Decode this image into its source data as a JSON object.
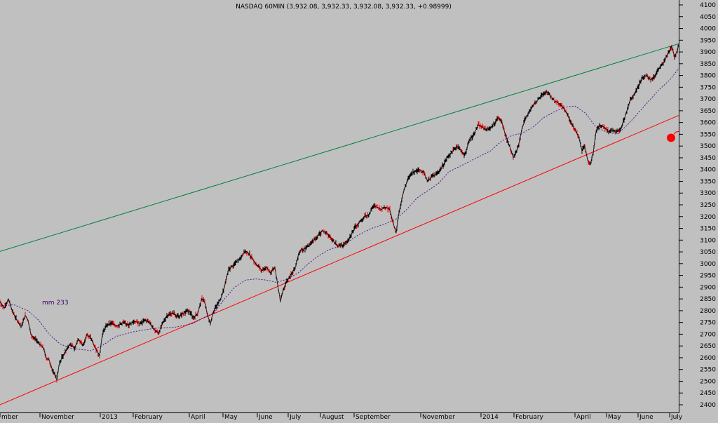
{
  "chart_data": {
    "type": "line",
    "title": "NASDAQ 60MIN (3,932.08, 3,932.33, 3,932.08, 3,932.33, +0.98999)",
    "xlabel": "",
    "ylabel": "",
    "ylim": [
      2400,
      4100
    ],
    "grid": false,
    "legend": "none",
    "y_ticks": [
      2400,
      2450,
      2500,
      2550,
      2600,
      2650,
      2700,
      2750,
      2800,
      2850,
      2900,
      2950,
      3000,
      3050,
      3100,
      3150,
      3200,
      3250,
      3300,
      3350,
      3400,
      3450,
      3500,
      3550,
      3600,
      3650,
      3700,
      3750,
      3800,
      3850,
      3900,
      3950,
      4000,
      4050,
      4100
    ],
    "x_month_labels": [
      {
        "t": 0,
        "label": "mber"
      },
      {
        "t": 57,
        "label": "November"
      },
      {
        "t": 143,
        "label": "2013"
      },
      {
        "t": 190,
        "label": "February"
      },
      {
        "t": 270,
        "label": "April"
      },
      {
        "t": 318,
        "label": "May"
      },
      {
        "t": 367,
        "label": "June"
      },
      {
        "t": 411,
        "label": "July"
      },
      {
        "t": 457,
        "label": "August"
      },
      {
        "t": 505,
        "label": "September"
      },
      {
        "t": 600,
        "label": "November"
      },
      {
        "t": 686,
        "label": "2014"
      },
      {
        "t": 733,
        "label": "February"
      },
      {
        "t": 820,
        "label": "April"
      },
      {
        "t": 865,
        "label": "May"
      },
      {
        "t": 910,
        "label": "June"
      },
      {
        "t": 955,
        "label": "July"
      }
    ],
    "x_range": [
      0,
      968
    ],
    "price_path": [
      [
        0,
        2840
      ],
      [
        6,
        2810
      ],
      [
        12,
        2850
      ],
      [
        18,
        2795
      ],
      [
        24,
        2760
      ],
      [
        30,
        2730
      ],
      [
        36,
        2780
      ],
      [
        40,
        2760
      ],
      [
        44,
        2700
      ],
      [
        50,
        2680
      ],
      [
        56,
        2660
      ],
      [
        62,
        2640
      ],
      [
        66,
        2600
      ],
      [
        70,
        2590
      ],
      [
        74,
        2555
      ],
      [
        78,
        2530
      ],
      [
        81,
        2505
      ],
      [
        84,
        2565
      ],
      [
        88,
        2600
      ],
      [
        94,
        2630
      ],
      [
        100,
        2660
      ],
      [
        106,
        2640
      ],
      [
        112,
        2680
      ],
      [
        118,
        2650
      ],
      [
        124,
        2700
      ],
      [
        130,
        2680
      ],
      [
        136,
        2640
      ],
      [
        142,
        2610
      ],
      [
        146,
        2700
      ],
      [
        152,
        2740
      ],
      [
        160,
        2745
      ],
      [
        168,
        2735
      ],
      [
        176,
        2750
      ],
      [
        184,
        2740
      ],
      [
        192,
        2755
      ],
      [
        200,
        2745
      ],
      [
        208,
        2760
      ],
      [
        214,
        2745
      ],
      [
        220,
        2720
      ],
      [
        226,
        2705
      ],
      [
        232,
        2745
      ],
      [
        238,
        2780
      ],
      [
        246,
        2790
      ],
      [
        254,
        2775
      ],
      [
        262,
        2790
      ],
      [
        270,
        2800
      ],
      [
        276,
        2770
      ],
      [
        282,
        2790
      ],
      [
        288,
        2850
      ],
      [
        292,
        2835
      ],
      [
        296,
        2780
      ],
      [
        300,
        2745
      ],
      [
        304,
        2795
      ],
      [
        310,
        2825
      ],
      [
        316,
        2860
      ],
      [
        320,
        2900
      ],
      [
        326,
        2975
      ],
      [
        332,
        2990
      ],
      [
        338,
        3010
      ],
      [
        344,
        3030
      ],
      [
        350,
        3055
      ],
      [
        356,
        3040
      ],
      [
        362,
        3010
      ],
      [
        368,
        2990
      ],
      [
        374,
        2970
      ],
      [
        380,
        2985
      ],
      [
        386,
        2960
      ],
      [
        392,
        2985
      ],
      [
        396,
        2910
      ],
      [
        400,
        2840
      ],
      [
        404,
        2890
      ],
      [
        410,
        2930
      ],
      [
        416,
        2960
      ],
      [
        422,
        2990
      ],
      [
        426,
        3045
      ],
      [
        430,
        3060
      ],
      [
        436,
        3065
      ],
      [
        442,
        3080
      ],
      [
        448,
        3100
      ],
      [
        454,
        3120
      ],
      [
        460,
        3140
      ],
      [
        466,
        3130
      ],
      [
        472,
        3110
      ],
      [
        478,
        3085
      ],
      [
        484,
        3075
      ],
      [
        490,
        3080
      ],
      [
        496,
        3100
      ],
      [
        502,
        3130
      ],
      [
        508,
        3160
      ],
      [
        514,
        3180
      ],
      [
        520,
        3200
      ],
      [
        526,
        3210
      ],
      [
        532,
        3245
      ],
      [
        538,
        3240
      ],
      [
        544,
        3230
      ],
      [
        550,
        3240
      ],
      [
        556,
        3230
      ],
      [
        560,
        3180
      ],
      [
        565,
        3130
      ],
      [
        568,
        3200
      ],
      [
        572,
        3260
      ],
      [
        576,
        3310
      ],
      [
        580,
        3345
      ],
      [
        586,
        3380
      ],
      [
        592,
        3395
      ],
      [
        598,
        3400
      ],
      [
        604,
        3390
      ],
      [
        610,
        3350
      ],
      [
        616,
        3370
      ],
      [
        622,
        3380
      ],
      [
        628,
        3400
      ],
      [
        634,
        3430
      ],
      [
        640,
        3460
      ],
      [
        646,
        3480
      ],
      [
        652,
        3500
      ],
      [
        658,
        3480
      ],
      [
        662,
        3460
      ],
      [
        666,
        3490
      ],
      [
        670,
        3530
      ],
      [
        676,
        3550
      ],
      [
        682,
        3590
      ],
      [
        688,
        3580
      ],
      [
        694,
        3570
      ],
      [
        700,
        3580
      ],
      [
        706,
        3600
      ],
      [
        710,
        3620
      ],
      [
        716,
        3600
      ],
      [
        720,
        3555
      ],
      [
        724,
        3520
      ],
      [
        728,
        3490
      ],
      [
        732,
        3450
      ],
      [
        736,
        3470
      ],
      [
        740,
        3510
      ],
      [
        744,
        3570
      ],
      [
        750,
        3620
      ],
      [
        756,
        3650
      ],
      [
        762,
        3680
      ],
      [
        768,
        3700
      ],
      [
        774,
        3720
      ],
      [
        780,
        3730
      ],
      [
        786,
        3710
      ],
      [
        792,
        3690
      ],
      [
        798,
        3680
      ],
      [
        804,
        3660
      ],
      [
        810,
        3630
      ],
      [
        814,
        3600
      ],
      [
        818,
        3580
      ],
      [
        822,
        3560
      ],
      [
        826,
        3530
      ],
      [
        830,
        3480
      ],
      [
        834,
        3500
      ],
      [
        838,
        3440
      ],
      [
        842,
        3425
      ],
      [
        846,
        3470
      ],
      [
        850,
        3560
      ],
      [
        856,
        3590
      ],
      [
        862,
        3580
      ],
      [
        868,
        3560
      ],
      [
        874,
        3570
      ],
      [
        880,
        3560
      ],
      [
        886,
        3580
      ],
      [
        892,
        3630
      ],
      [
        898,
        3690
      ],
      [
        904,
        3720
      ],
      [
        910,
        3750
      ],
      [
        916,
        3790
      ],
      [
        922,
        3800
      ],
      [
        928,
        3780
      ],
      [
        934,
        3800
      ],
      [
        940,
        3830
      ],
      [
        946,
        3850
      ],
      [
        950,
        3880
      ],
      [
        954,
        3900
      ],
      [
        958,
        3925
      ],
      [
        962,
        3880
      ],
      [
        966,
        3905
      ],
      [
        968,
        3932
      ]
    ],
    "moving_average": {
      "name": "mm 233",
      "values": [
        [
          0,
          2820
        ],
        [
          20,
          2825
        ],
        [
          40,
          2800
        ],
        [
          55,
          2760
        ],
        [
          70,
          2700
        ],
        [
          85,
          2660
        ],
        [
          100,
          2640
        ],
        [
          115,
          2635
        ],
        [
          130,
          2630
        ],
        [
          145,
          2650
        ],
        [
          165,
          2690
        ],
        [
          190,
          2710
        ],
        [
          220,
          2725
        ],
        [
          250,
          2730
        ],
        [
          275,
          2745
        ],
        [
          290,
          2770
        ],
        [
          305,
          2790
        ],
        [
          320,
          2850
        ],
        [
          335,
          2900
        ],
        [
          350,
          2930
        ],
        [
          365,
          2935
        ],
        [
          380,
          2930
        ],
        [
          395,
          2920
        ],
        [
          410,
          2935
        ],
        [
          425,
          2960
        ],
        [
          440,
          3000
        ],
        [
          455,
          3035
        ],
        [
          470,
          3060
        ],
        [
          490,
          3080
        ],
        [
          510,
          3120
        ],
        [
          530,
          3150
        ],
        [
          550,
          3170
        ],
        [
          565,
          3190
        ],
        [
          580,
          3230
        ],
        [
          595,
          3280
        ],
        [
          610,
          3310
        ],
        [
          625,
          3340
        ],
        [
          640,
          3390
        ],
        [
          660,
          3420
        ],
        [
          680,
          3450
        ],
        [
          700,
          3480
        ],
        [
          715,
          3520
        ],
        [
          730,
          3545
        ],
        [
          745,
          3555
        ],
        [
          760,
          3580
        ],
        [
          775,
          3620
        ],
        [
          790,
          3645
        ],
        [
          805,
          3665
        ],
        [
          820,
          3670
        ],
        [
          835,
          3640
        ],
        [
          850,
          3580
        ],
        [
          865,
          3560
        ],
        [
          880,
          3550
        ],
        [
          895,
          3590
        ],
        [
          910,
          3640
        ],
        [
          925,
          3690
        ],
        [
          940,
          3740
        ],
        [
          955,
          3780
        ],
        [
          968,
          3830
        ]
      ]
    },
    "trendlines": [
      {
        "color": "#008040",
        "from": [
          0,
          3052
        ],
        "to": [
          968,
          3935
        ]
      },
      {
        "color": "#ff0000",
        "from": [
          0,
          2400
        ],
        "to": [
          968,
          3630
        ]
      }
    ],
    "marker": {
      "t": 957,
      "value": 3535,
      "color": "#ff0000"
    }
  }
}
